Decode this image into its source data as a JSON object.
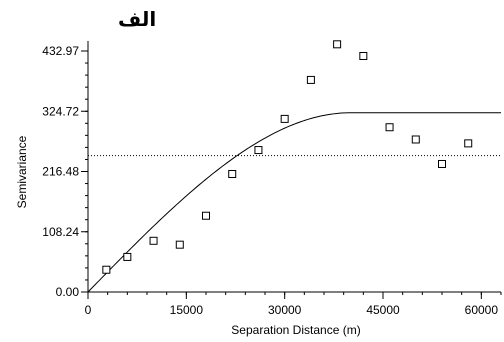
{
  "chart_data": {
    "type": "scatter",
    "title": "الف",
    "xlabel": "Separation Distance (m)",
    "ylabel": "Semivariance",
    "xlim": [
      0,
      63000
    ],
    "ylim": [
      0,
      432.97
    ],
    "x_ticks": [
      0,
      15000,
      30000,
      45000,
      60000
    ],
    "x_tick_labels": [
      "0",
      "15000",
      "30000",
      "45000",
      "60000"
    ],
    "y_ticks": [
      0,
      108.24,
      216.48,
      324.72,
      432.97
    ],
    "y_tick_labels": [
      "0.00",
      "108.24",
      "216.48",
      "324.72",
      "432.97"
    ],
    "grid": false,
    "series": [
      {
        "kind": "points",
        "marker": "square",
        "x": [
          2800,
          6000,
          10000,
          14000,
          18000,
          22000,
          26000,
          30000,
          34000,
          38000,
          42000,
          46000,
          50000,
          54000,
          58000
        ],
        "y": [
          40,
          63,
          92,
          85,
          137,
          212,
          255,
          311,
          381,
          445,
          424,
          296,
          274,
          230,
          267
        ]
      },
      {
        "kind": "model",
        "model_type": "spherical",
        "range": 40000,
        "sill": 322,
        "nugget": 0
      },
      {
        "kind": "reference",
        "style": "dotted",
        "y": 245
      }
    ]
  }
}
